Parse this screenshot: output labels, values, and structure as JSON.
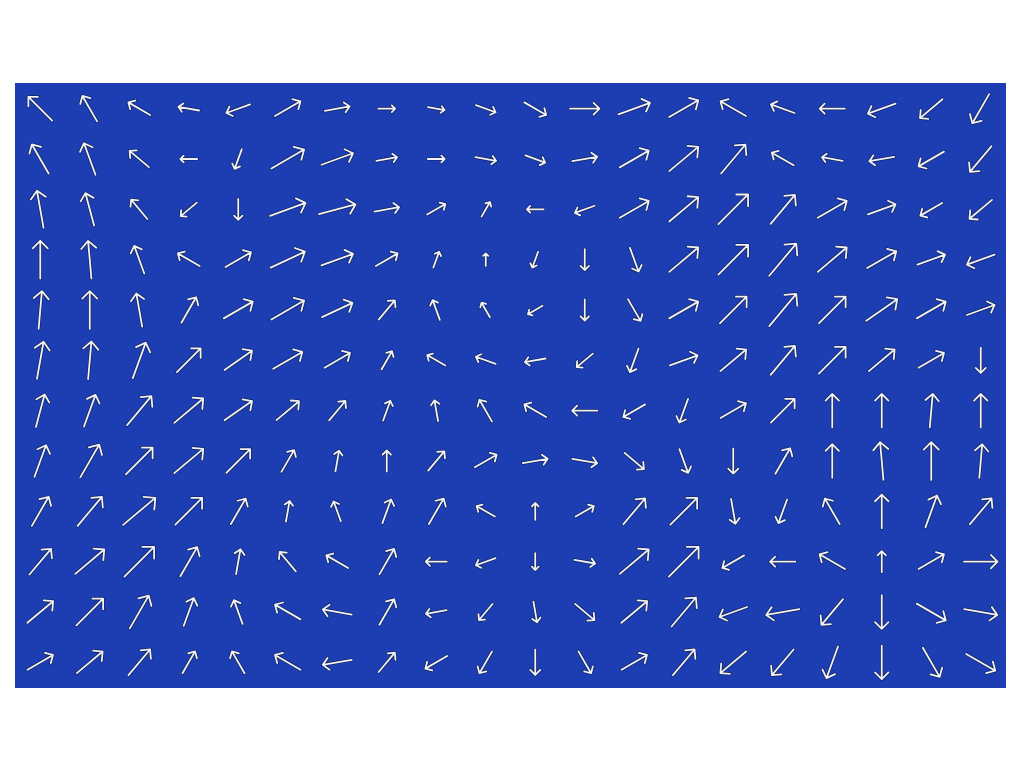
{
  "chart_data": {
    "type": "vector",
    "tick_labels": false,
    "color": "#f2f2f2",
    "xlim": [
      0,
      20
    ],
    "ylim": [
      0,
      12
    ],
    "x": [
      0.5,
      1.5,
      2.5,
      3.5,
      4.5,
      5.5,
      6.5,
      7.5,
      8.5,
      9.5,
      10.5,
      11.5,
      12.5,
      13.5,
      14.5,
      15.5,
      16.5,
      17.5,
      18.5,
      19.5
    ],
    "y": [
      11.5,
      10.5,
      9.5,
      8.5,
      7.5,
      6.5,
      5.5,
      4.5,
      3.5,
      2.5,
      1.5,
      0.5
    ],
    "angle": [
      [
        315,
        330,
        300,
        280,
        250,
        60,
        80,
        90,
        100,
        110,
        120,
        90,
        70,
        60,
        300,
        290,
        270,
        250,
        230,
        210
      ],
      [
        330,
        340,
        310,
        270,
        200,
        60,
        70,
        80,
        90,
        100,
        110,
        80,
        60,
        50,
        40,
        300,
        280,
        260,
        240,
        220
      ],
      [
        350,
        345,
        320,
        230,
        180,
        70,
        75,
        80,
        60,
        30,
        270,
        250,
        60,
        50,
        45,
        40,
        60,
        70,
        240,
        230
      ],
      [
        0,
        355,
        340,
        300,
        60,
        65,
        70,
        60,
        20,
        0,
        200,
        180,
        160,
        50,
        45,
        40,
        50,
        60,
        70,
        250
      ],
      [
        5,
        0,
        350,
        30,
        60,
        60,
        65,
        40,
        340,
        330,
        240,
        180,
        150,
        60,
        45,
        40,
        45,
        55,
        60,
        70
      ],
      [
        10,
        5,
        20,
        45,
        55,
        60,
        60,
        30,
        300,
        290,
        260,
        230,
        200,
        70,
        50,
        40,
        45,
        50,
        60,
        180
      ],
      [
        15,
        20,
        40,
        50,
        55,
        50,
        40,
        20,
        350,
        330,
        300,
        270,
        240,
        200,
        60,
        45,
        0,
        0,
        5,
        0
      ],
      [
        20,
        30,
        45,
        50,
        45,
        30,
        10,
        0,
        40,
        60,
        80,
        100,
        130,
        160,
        180,
        30,
        0,
        355,
        0,
        5
      ],
      [
        30,
        40,
        50,
        45,
        30,
        10,
        340,
        20,
        30,
        300,
        0,
        60,
        40,
        45,
        170,
        200,
        330,
        0,
        20,
        40
      ],
      [
        40,
        50,
        45,
        30,
        10,
        320,
        300,
        30,
        270,
        250,
        180,
        100,
        50,
        45,
        240,
        270,
        300,
        0,
        60,
        90
      ],
      [
        50,
        45,
        30,
        20,
        340,
        300,
        280,
        30,
        260,
        220,
        170,
        130,
        50,
        40,
        250,
        260,
        220,
        180,
        120,
        100
      ],
      [
        60,
        50,
        40,
        30,
        330,
        300,
        260,
        40,
        240,
        210,
        180,
        150,
        60,
        40,
        230,
        220,
        200,
        180,
        150,
        120
      ]
    ],
    "length": [
      [
        0.8,
        0.7,
        0.6,
        0.5,
        0.6,
        0.7,
        0.6,
        0.4,
        0.4,
        0.5,
        0.6,
        0.7,
        0.8,
        0.8,
        0.7,
        0.6,
        0.6,
        0.7,
        0.7,
        0.8
      ],
      [
        0.8,
        0.8,
        0.6,
        0.4,
        0.5,
        0.9,
        0.8,
        0.5,
        0.4,
        0.5,
        0.5,
        0.6,
        0.8,
        0.9,
        0.9,
        0.6,
        0.5,
        0.6,
        0.7,
        0.8
      ],
      [
        0.9,
        0.8,
        0.6,
        0.5,
        0.5,
        0.9,
        0.9,
        0.6,
        0.5,
        0.4,
        0.4,
        0.5,
        0.8,
        0.9,
        1.0,
        0.9,
        0.8,
        0.7,
        0.6,
        0.7
      ],
      [
        0.9,
        0.9,
        0.7,
        0.6,
        0.7,
        0.9,
        0.8,
        0.6,
        0.4,
        0.3,
        0.4,
        0.5,
        0.6,
        0.9,
        1.0,
        1.0,
        0.9,
        0.8,
        0.7,
        0.7
      ],
      [
        0.9,
        0.9,
        0.8,
        0.7,
        0.8,
        0.9,
        0.8,
        0.6,
        0.5,
        0.4,
        0.4,
        0.5,
        0.6,
        0.8,
        0.9,
        1.0,
        0.9,
        0.9,
        0.8,
        0.7
      ],
      [
        0.9,
        0.9,
        0.9,
        0.8,
        0.8,
        0.8,
        0.7,
        0.5,
        0.5,
        0.5,
        0.5,
        0.5,
        0.6,
        0.7,
        0.8,
        0.9,
        0.9,
        0.8,
        0.7,
        0.6
      ],
      [
        0.8,
        0.8,
        0.9,
        0.9,
        0.8,
        0.7,
        0.6,
        0.5,
        0.5,
        0.6,
        0.6,
        0.6,
        0.6,
        0.6,
        0.7,
        0.8,
        0.8,
        0.8,
        0.8,
        0.8
      ],
      [
        0.8,
        0.9,
        0.9,
        0.9,
        0.8,
        0.6,
        0.5,
        0.5,
        0.6,
        0.6,
        0.6,
        0.6,
        0.6,
        0.6,
        0.6,
        0.7,
        0.8,
        0.9,
        0.9,
        0.8
      ],
      [
        0.8,
        0.9,
        1.0,
        0.9,
        0.7,
        0.5,
        0.5,
        0.6,
        0.7,
        0.5,
        0.4,
        0.5,
        0.8,
        0.9,
        0.6,
        0.6,
        0.7,
        0.8,
        0.8,
        0.8
      ],
      [
        0.8,
        0.9,
        1.0,
        0.8,
        0.6,
        0.6,
        0.6,
        0.7,
        0.5,
        0.5,
        0.4,
        0.5,
        0.9,
        1.0,
        0.6,
        0.6,
        0.7,
        0.5,
        0.7,
        0.8
      ],
      [
        0.8,
        0.9,
        0.9,
        0.7,
        0.6,
        0.7,
        0.7,
        0.7,
        0.5,
        0.5,
        0.5,
        0.6,
        0.8,
        0.9,
        0.7,
        0.8,
        0.8,
        0.8,
        0.8,
        0.8
      ],
      [
        0.7,
        0.8,
        0.8,
        0.6,
        0.6,
        0.7,
        0.7,
        0.6,
        0.6,
        0.6,
        0.6,
        0.6,
        0.7,
        0.8,
        0.8,
        0.8,
        0.8,
        0.8,
        0.8,
        0.8
      ]
    ]
  }
}
